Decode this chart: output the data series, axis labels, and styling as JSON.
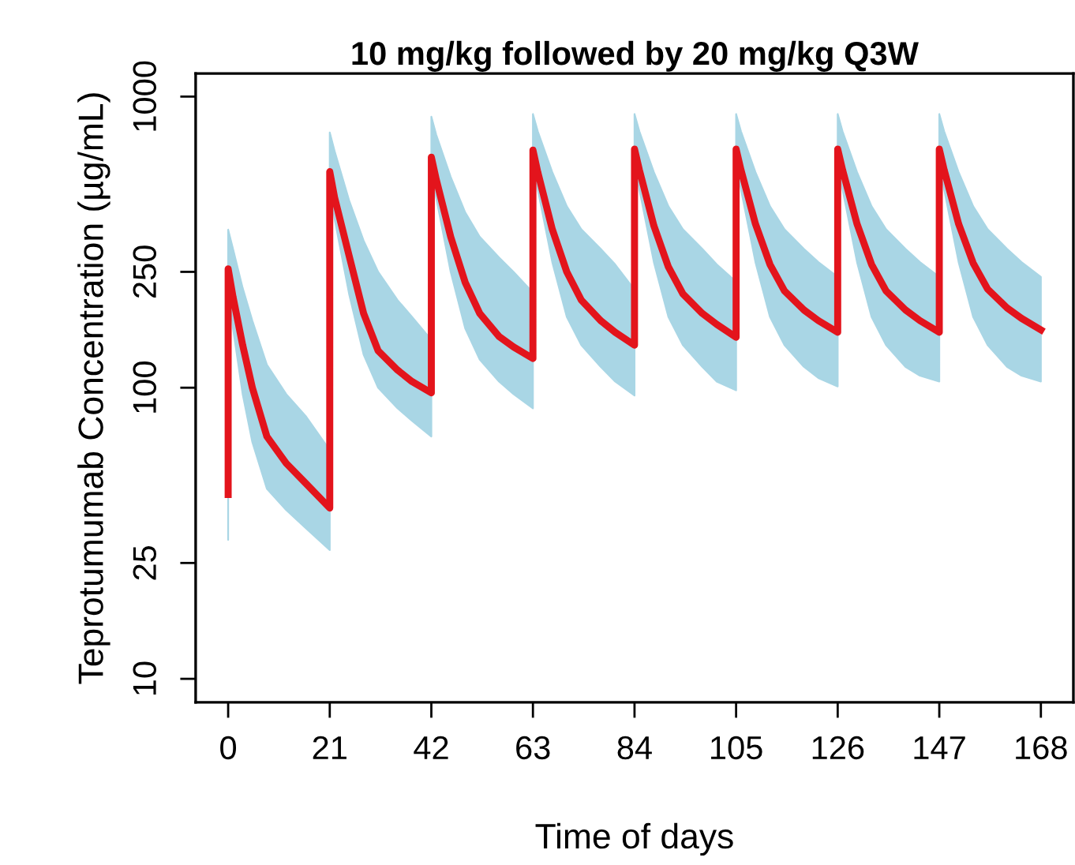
{
  "chart_data": {
    "type": "line",
    "title": "10 mg/kg followed by 20 mg/kg Q3W",
    "xlabel": "Time of days",
    "ylabel": "Teprotumumab Concentration (µg/mL)",
    "log": "y",
    "xlim": [
      -6.72,
      174.72
    ],
    "xticks": [
      0,
      21,
      42,
      63,
      84,
      105,
      126,
      147,
      168
    ],
    "ylim": [
      8.3,
      1200
    ],
    "yticks": [
      10,
      25,
      100,
      250,
      1000
    ],
    "grid": false,
    "marker": "none",
    "line_style": "solid",
    "series": [
      {
        "color": "#e3141c",
        "x": [
          0,
          0,
          1,
          3,
          5,
          8,
          12,
          16,
          21,
          21,
          22,
          25,
          28,
          31,
          35,
          38,
          42,
          42,
          43,
          46,
          49,
          52,
          56,
          59,
          63,
          63,
          64,
          67,
          70,
          73,
          77,
          80,
          84,
          84,
          85,
          88,
          91,
          94,
          98,
          101,
          105,
          105,
          106,
          109,
          112,
          115,
          119,
          122,
          126,
          126,
          127,
          130,
          133,
          136,
          140,
          143,
          147,
          147,
          148,
          151,
          154,
          157,
          161,
          164,
          168
        ],
        "values": [
          43,
          256,
          205,
          140,
          100,
          68,
          55,
          47,
          38.6,
          552,
          450,
          284,
          180,
          134,
          115,
          105,
          96,
          619,
          520,
          330,
          230,
          180,
          150,
          138,
          126,
          655,
          550,
          350,
          250,
          200,
          170,
          155,
          140,
          660,
          560,
          360,
          260,
          210,
          180,
          165,
          149,
          660,
          560,
          365,
          265,
          215,
          185,
          170,
          155,
          660,
          560,
          365,
          265,
          215,
          185,
          170,
          155,
          660,
          560,
          365,
          268,
          218,
          188,
          173,
          158
        ],
        "upper": [
          55,
          349,
          300,
          220,
          170,
          120,
          95,
          80,
          61,
          753,
          650,
          440,
          320,
          250,
          200,
          175,
          146,
          853,
          740,
          530,
          400,
          330,
          280,
          250,
          212,
          871,
          760,
          550,
          420,
          350,
          300,
          265,
          217,
          871,
          760,
          550,
          420,
          350,
          300,
          265,
          231,
          871,
          760,
          550,
          420,
          350,
          300,
          270,
          240,
          871,
          760,
          550,
          420,
          350,
          300,
          270,
          240,
          871,
          760,
          550,
          420,
          350,
          300,
          270,
          240
        ],
        "lower": [
          30,
          230,
          160,
          95,
          65,
          45,
          38,
          33,
          27.7,
          500,
          380,
          210,
          130,
          100,
          85,
          77,
          68,
          560,
          450,
          250,
          160,
          125,
          105,
          95,
          85,
          600,
          480,
          270,
          175,
          140,
          118,
          105,
          94,
          600,
          480,
          270,
          175,
          140,
          118,
          105,
          98,
          600,
          480,
          270,
          175,
          140,
          118,
          108,
          101,
          600,
          480,
          270,
          175,
          140,
          118,
          110,
          105,
          600,
          480,
          270,
          175,
          140,
          118,
          110,
          105
        ]
      }
    ]
  }
}
